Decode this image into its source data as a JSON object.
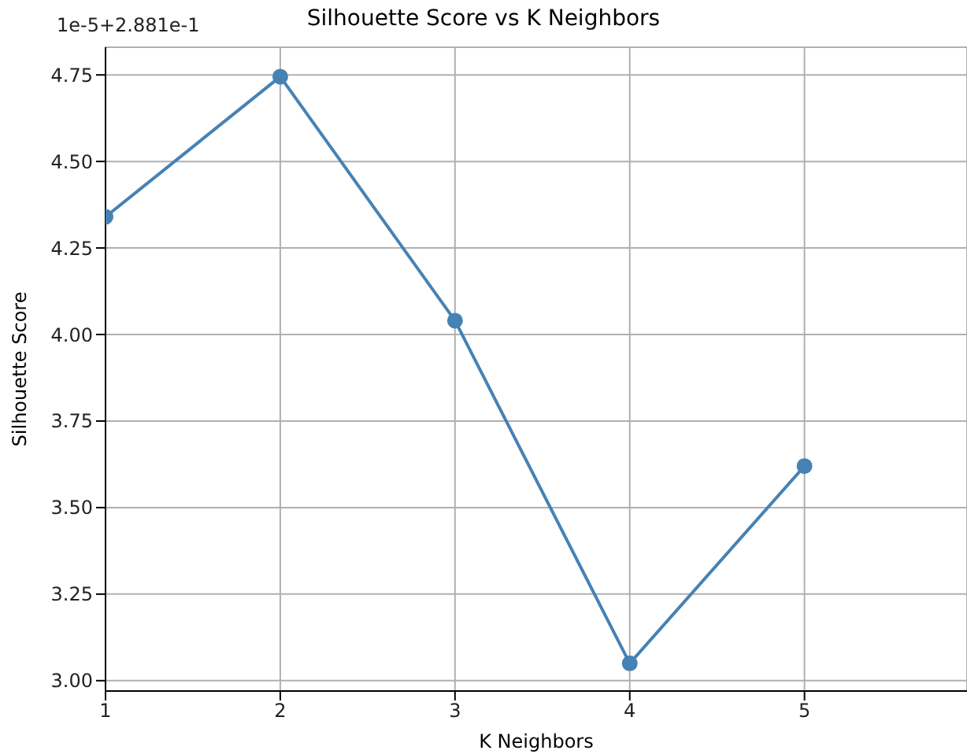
{
  "chart_data": {
    "type": "line",
    "title": "Silhouette Score vs K Neighbors",
    "xlabel": "K Neighbors",
    "ylabel": "Silhouette Score",
    "annotations": [
      "1e-5+2.881e-1"
    ],
    "x": [
      1,
      2,
      3,
      4,
      5
    ],
    "series": [
      {
        "color": "#4682b4",
        "values": [
          4.34,
          4.745,
          4.04,
          3.05,
          3.62
        ]
      }
    ],
    "xlim": [
      1,
      5.93
    ],
    "xticks": [
      1,
      2,
      3,
      4,
      5
    ],
    "ylim": [
      2.97,
      4.83
    ],
    "yticks": [
      {
        "value": 3,
        "label": "3.00"
      },
      {
        "value": 3.25,
        "label": "3.25"
      },
      {
        "value": 3.5,
        "label": "3.50"
      },
      {
        "value": 3.75,
        "label": "3.75"
      },
      {
        "value": 4,
        "label": "4.00"
      },
      {
        "value": 4.25,
        "label": "4.25"
      },
      {
        "value": 4.5,
        "label": "4.50"
      },
      {
        "value": 4.75,
        "label": "4.75"
      }
    ],
    "grid": true,
    "marker": "circle",
    "line_style": "solid"
  }
}
